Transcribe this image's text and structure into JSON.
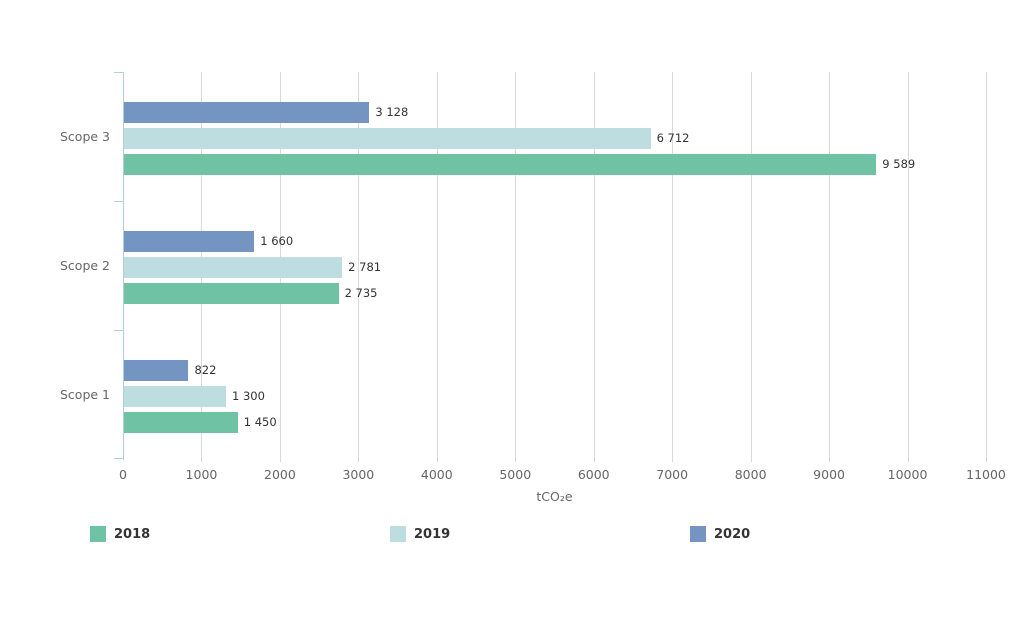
{
  "chart_data": {
    "type": "bar",
    "orientation": "horizontal",
    "xlabel": "tCO₂e",
    "xlim": [
      0,
      11000
    ],
    "xticks": [
      0,
      1000,
      2000,
      3000,
      4000,
      5000,
      6000,
      7000,
      8000,
      9000,
      10000,
      11000
    ],
    "xtick_labels": [
      "0",
      "1000",
      "2000",
      "3000",
      "4000",
      "5000",
      "6000",
      "7000",
      "8000",
      "9000",
      "10000",
      "11000"
    ],
    "categories": [
      "Scope 3",
      "Scope 2",
      "Scope 1"
    ],
    "series": [
      {
        "name": "2018",
        "color": "#6fc2a3",
        "values": [
          9589,
          2735,
          1450
        ],
        "value_labels": [
          "9 589",
          "2 735",
          "1 450"
        ]
      },
      {
        "name": "2019",
        "color": "#bddde1",
        "values": [
          6712,
          2781,
          1300
        ],
        "value_labels": [
          "6 712",
          "2 781",
          "1 300"
        ]
      },
      {
        "name": "2020",
        "color": "#7495c2",
        "values": [
          3128,
          1660,
          822
        ],
        "value_labels": [
          "3 128",
          "1 660",
          "822"
        ]
      }
    ],
    "grid": true,
    "legend_position": "bottom",
    "bar_order_in_group": "2020 top, 2019 middle, 2018 bottom"
  },
  "colors": {
    "background": "#ffffff",
    "axis_line": "#b6ced8",
    "gridline": "#d9d9d9",
    "tick_label": "#666666",
    "value_label": "#333333",
    "legend_label": "#333333"
  }
}
